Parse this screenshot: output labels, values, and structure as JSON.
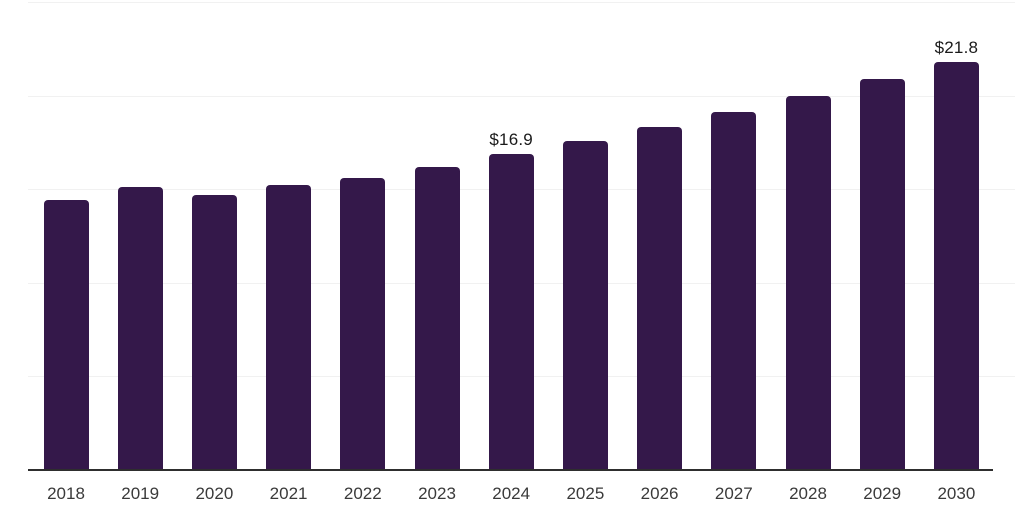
{
  "chart_data": {
    "type": "bar",
    "title": "",
    "xlabel": "",
    "ylabel": "",
    "categories": [
      "2018",
      "2019",
      "2020",
      "2021",
      "2022",
      "2023",
      "2024",
      "2025",
      "2026",
      "2027",
      "2028",
      "2029",
      "2030"
    ],
    "values": [
      14.4,
      15.1,
      14.7,
      15.2,
      15.6,
      16.2,
      16.9,
      17.6,
      18.3,
      19.1,
      20.0,
      20.9,
      21.8
    ],
    "annotations": [
      {
        "category": "2024",
        "label": "$16.9"
      },
      {
        "category": "2030",
        "label": "$21.8"
      }
    ],
    "ylim": [
      0,
      25
    ],
    "grid": "horizontal",
    "gridline_step": 5,
    "y_axis_labels_visible": false,
    "legend": "none",
    "colors": {
      "bar": "#34184A",
      "axis": "#2E2E2E",
      "grid": "#F1F1F1",
      "value_label": "#1A1A1A",
      "tick_label": "#3A3A3A",
      "background": "#FFFFFF"
    }
  }
}
